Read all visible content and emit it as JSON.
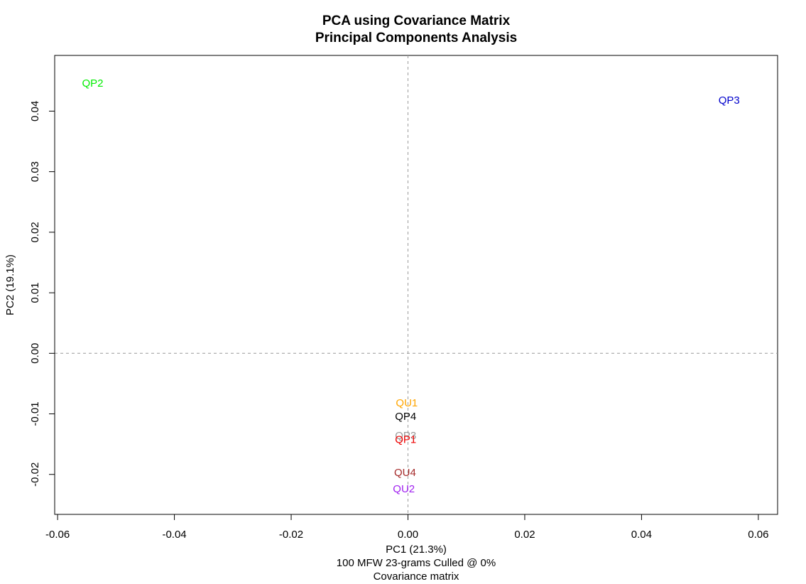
{
  "chart_data": {
    "type": "scatter",
    "title": "PCA using Covariance Matrix",
    "subtitle": "Principal Components Analysis",
    "xlabel": "PC1 (21.3%)",
    "ylabel": "PC2 (19.1%)",
    "caption_lines": [
      "100 MFW 23-grams Culled @ 0%",
      "Covariance matrix"
    ],
    "xlim": [
      -0.0605,
      0.0633
    ],
    "ylim": [
      -0.0266,
      0.0492
    ],
    "x_ticks": [
      -0.06,
      -0.04,
      -0.02,
      0.0,
      0.02,
      0.04,
      0.06
    ],
    "x_tick_labels": [
      "-0.06",
      "-0.04",
      "-0.02",
      "0.00",
      "0.02",
      "0.04",
      "0.06"
    ],
    "y_ticks": [
      -0.02,
      -0.01,
      0.0,
      0.01,
      0.02,
      0.03,
      0.04
    ],
    "y_tick_labels": [
      "-0.02",
      "-0.01",
      "0.00",
      "0.01",
      "0.02",
      "0.03",
      "0.04"
    ],
    "reference_lines": {
      "x": 0,
      "y": 0,
      "style": "dashed",
      "color": "#999999"
    },
    "grid": false,
    "points": [
      {
        "label": "QP2",
        "x": -0.054,
        "y": 0.0446,
        "color": "#00ee00"
      },
      {
        "label": "QP3",
        "x": 0.055,
        "y": 0.0418,
        "color": "#0000cc"
      },
      {
        "label": "QU1",
        "x": -0.0002,
        "y": -0.0082,
        "color": "#ffa500"
      },
      {
        "label": "QP4",
        "x": -0.0004,
        "y": -0.0104,
        "color": "#000000"
      },
      {
        "label": "QP3",
        "x": -0.0004,
        "y": -0.0136,
        "color": "#999999"
      },
      {
        "label": "QP1",
        "x": -0.0004,
        "y": -0.0142,
        "color": "#ee0000"
      },
      {
        "label": "QU4",
        "x": -0.0005,
        "y": -0.0197,
        "color": "#a52a2a"
      },
      {
        "label": "QU2",
        "x": -0.0007,
        "y": -0.0224,
        "color": "#a020f0"
      }
    ]
  }
}
